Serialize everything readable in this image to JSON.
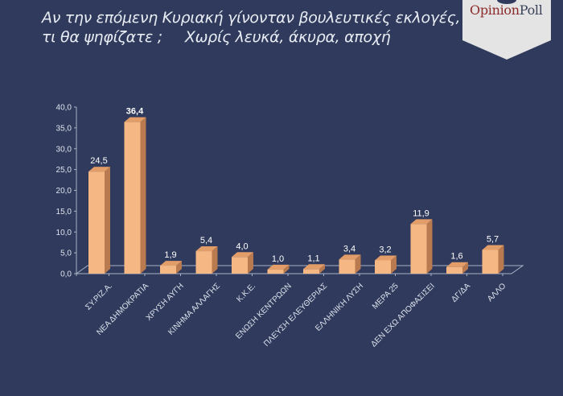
{
  "title": {
    "line1": "Αν την επόμενη Κυριακή γίνονταν βουλευτικές εκλογές,",
    "line2": "τι θα ψηφίζατε ;",
    "subtitle": "Χωρίς λευκά, άκυρα, αποχή"
  },
  "logo": {
    "part1": "Opinion",
    "part2": "Poll"
  },
  "colors": {
    "background": "#2f3a5c",
    "bar_front": "#f5b885",
    "bar_side": "#b87a4e",
    "bar_top": "#e39d68",
    "logo_bg": "#e4e4e4"
  },
  "y_ticks": [
    "0,0",
    "5,0",
    "10,0",
    "15,0",
    "20,0",
    "25,0",
    "30,0",
    "35,0",
    "40,0"
  ],
  "chart_data": {
    "type": "bar",
    "title": "Αν την επόμενη Κυριακή γίνονταν βουλευτικές εκλογές, τι θα ψηφίζατε ; Χωρίς λευκά, άκυρα, αποχή",
    "categories": [
      "ΣΥ.ΡΙΖ.Α.",
      "ΝΕΑ ΔΗΜΟΚΡΑΤΙΑ",
      "ΧΡΥΣΗ ΑΥΓΗ",
      "ΚΙΝΗΜΑ ΑΛΛΑΓΗΣ",
      "Κ.Κ.Ε.",
      "ΕΝΩΣΗ ΚΕΝΤΡΩΩΝ",
      "ΠΛΕΥΣΗ ΕΛΕΥΘΕΡΙΑΣ",
      "ΕΛΛΗΝΙΚΗ ΛΥΣΗ",
      "ΜΕΡΑ 25",
      "ΔΕΝ ΕΧΩ ΑΠΟΦΑΣΙΣΕΙ",
      "ΔΓ/ΔΑ",
      "ΑΛΛΟ"
    ],
    "values": [
      24.5,
      36.4,
      1.9,
      5.4,
      4.0,
      1.0,
      1.1,
      3.4,
      3.2,
      11.9,
      1.6,
      5.7
    ],
    "value_labels": [
      "24,5",
      "36,4",
      "1,9",
      "5,4",
      "4,0",
      "1,0",
      "1,1",
      "3,4",
      "3,2",
      "11,9",
      "1,6",
      "5,7"
    ],
    "xlabel": "",
    "ylabel": "",
    "ylim": [
      0,
      40
    ],
    "ytick_step": 5,
    "grid": false,
    "style": "3d-column"
  }
}
